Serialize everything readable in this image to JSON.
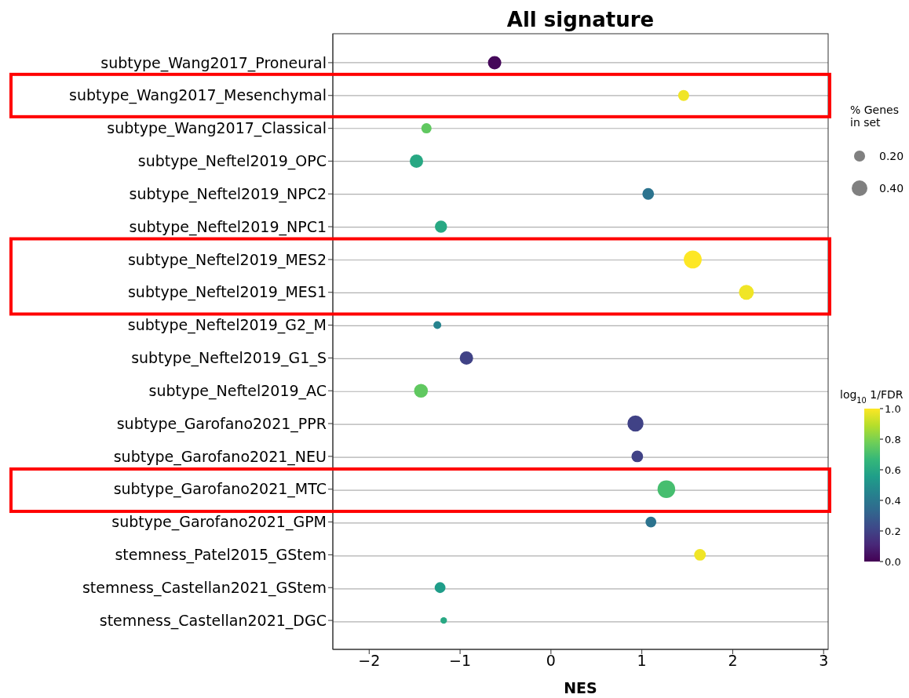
{
  "chart_data": {
    "type": "bubble",
    "title": "All signature",
    "xlabel": "NES",
    "legend_title": "% Genes in set",
    "clabel": "log$_{10}$ 1/FDR",
    "categories": [
      "subtype_Wang2017_Proneural",
      "subtype_Wang2017_Mesenchymal",
      "subtype_Wang2017_Classical",
      "subtype_Neftel2019_OPC",
      "subtype_Neftel2019_NPC2",
      "subtype_Neftel2019_NPC1",
      "subtype_Neftel2019_MES2",
      "subtype_Neftel2019_MES1",
      "subtype_Neftel2019_G2_M",
      "subtype_Neftel2019_G1_S",
      "subtype_Neftel2019_AC",
      "subtype_Garofano2021_PPR",
      "subtype_Garofano2021_NEU",
      "subtype_Garofano2021_MTC",
      "subtype_Garofano2021_GPM",
      "stemness_Patel2015_GStem",
      "stemness_Castellan2021_GStem",
      "stemness_Castellan2021_DGC"
    ],
    "values": [
      -0.62,
      1.46,
      -1.37,
      -1.48,
      1.07,
      -1.21,
      1.56,
      2.15,
      -1.25,
      -0.93,
      -1.43,
      0.93,
      0.95,
      1.27,
      1.1,
      1.64,
      -1.22,
      -1.18
    ],
    "sizes": [
      0.29,
      0.2,
      0.17,
      0.29,
      0.22,
      0.24,
      0.52,
      0.36,
      0.1,
      0.29,
      0.31,
      0.42,
      0.22,
      0.51,
      0.19,
      0.22,
      0.19,
      0.07
    ],
    "size_legend": [
      {
        "value": 0.2,
        "label": "0.20"
      },
      {
        "value": 0.4,
        "label": "0.40"
      }
    ],
    "cvalues": [
      0.02,
      0.98,
      0.75,
      0.6,
      0.38,
      0.6,
      1.0,
      0.98,
      0.45,
      0.2,
      0.75,
      0.2,
      0.2,
      0.7,
      0.38,
      0.98,
      0.55,
      0.6
    ],
    "clim": [
      0,
      1
    ],
    "cticks": [
      {
        "value": 0,
        "label": "0.0"
      },
      {
        "value": 0.2,
        "label": "0.2"
      },
      {
        "value": 0.4,
        "label": "0.4"
      },
      {
        "value": 0.6,
        "label": "0.6"
      },
      {
        "value": 0.8,
        "label": "0.8"
      },
      {
        "value": 1,
        "label": "1.0"
      }
    ],
    "xlim": [
      -2.4,
      3.05
    ],
    "xticks": [
      {
        "value": -2,
        "label": "−2"
      },
      {
        "value": -1,
        "label": "−1"
      },
      0,
      1,
      2,
      3
    ],
    "grid": "y",
    "orientation": "horizontal"
  }
}
